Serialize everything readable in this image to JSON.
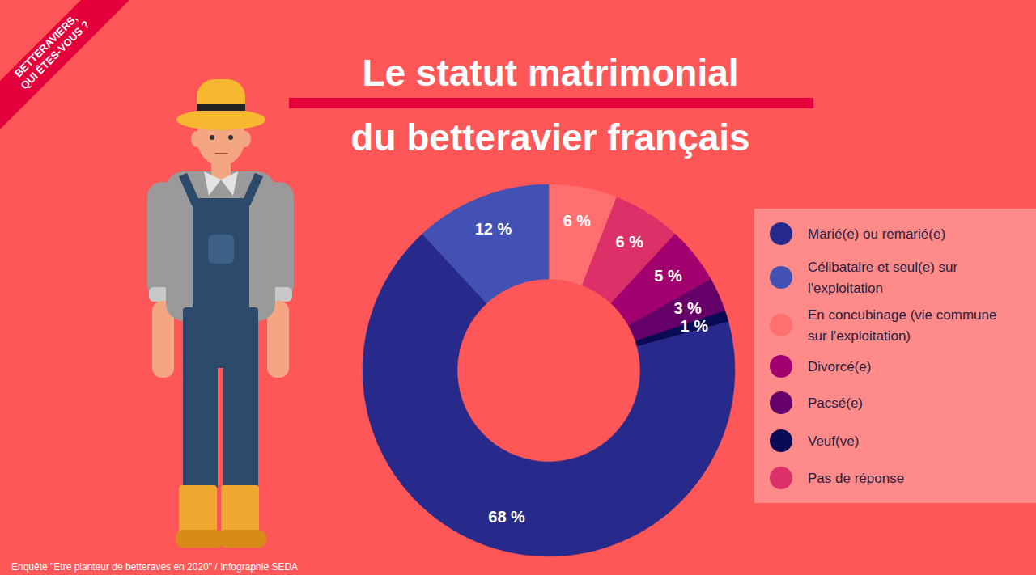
{
  "chart_data": {
    "type": "pie",
    "title": "Le statut matrimonial\ndu betteravier français",
    "categories": [
      "En concubinage (vie commune sur l'exploitation)",
      "Pas de réponse",
      "Divorcé(e)",
      "Pacsé(e)",
      "Veuf(ve)",
      "Marié(e) ou remarié(e)",
      "Célibataire et seul(e) sur l'exploitation"
    ],
    "values": [
      6,
      6,
      5,
      3,
      1,
      68,
      12
    ],
    "value_labels": [
      "6 %",
      "6 %",
      "5 %",
      "3 %",
      "1 %",
      "68 %",
      "12 %"
    ],
    "colors": [
      "#ff6f6f",
      "#dc3068",
      "#a1006e",
      "#650069",
      "#0b0a55",
      "#272a8a",
      "#4351b4"
    ],
    "data_labels": true,
    "legend": "right",
    "annotations": [
      "BETTERAVIERS,\nQUI ÊTES-VOUS ?",
      "Enquête \"Etre planteur de betteraves en 2020\" / Infographie SEDA"
    ]
  }
}
